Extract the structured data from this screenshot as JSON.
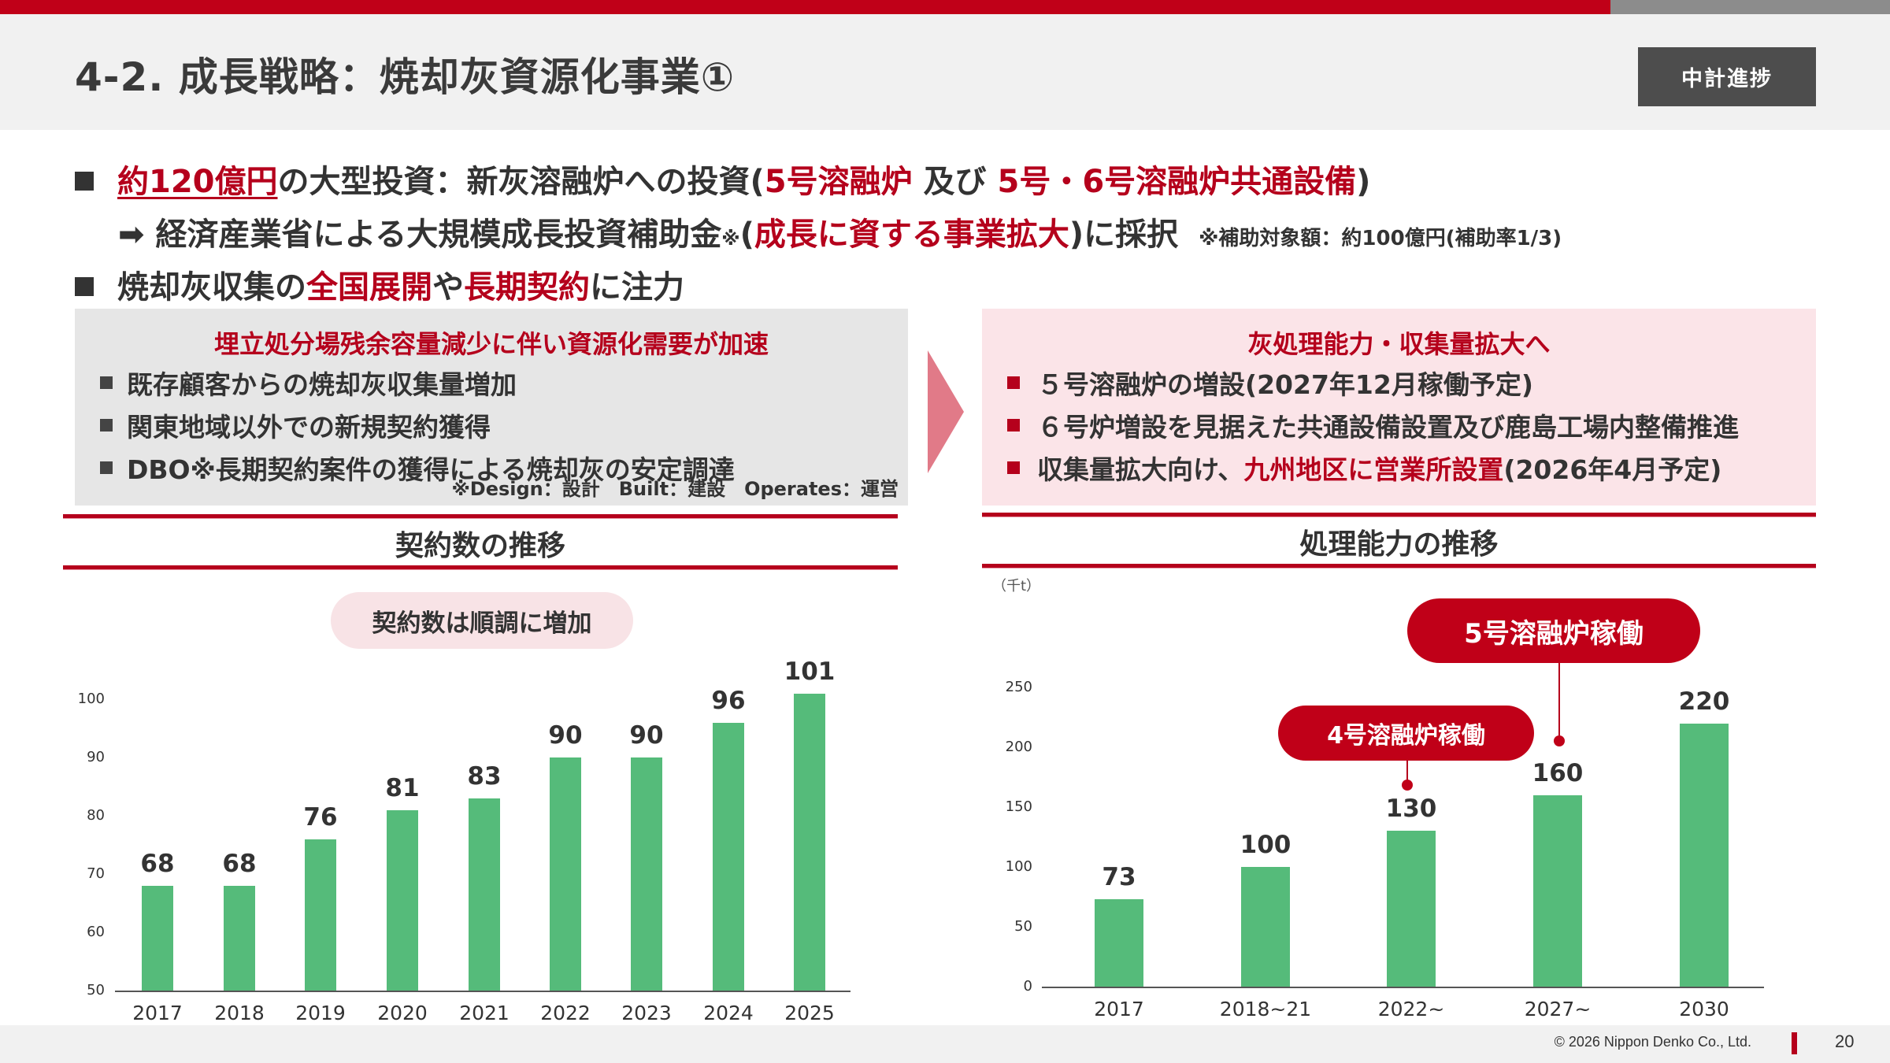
{
  "header": {
    "title": "4-2. 成長戦略：焼却灰資源化事業①",
    "badge": "中計進捗",
    "colors": {
      "accent_red": "#c00018",
      "badge_bg": "#4d4d4d",
      "bar_green": "#55bb7a"
    }
  },
  "bullets": {
    "line1": {
      "highlight": "約120億円",
      "text_a": "の大型投資：新灰溶融炉への投資(",
      "red_a": "5号溶融炉",
      "text_b": " 及び ",
      "red_b": "5号・6号溶融炉共通設備",
      "text_c": ")"
    },
    "line2": {
      "arrow": "➡",
      "text_a": " 経済産業省による大規模成長投資補助金",
      "sup": "※",
      "text_b": "(",
      "red": "成長に資する事業拡大",
      "text_c": ")に採択",
      "note": "※補助対象額：約100億円(補助率1/3)"
    },
    "line3": {
      "text_a": "焼却灰収集の",
      "red_a": "全国展開",
      "text_b": "や",
      "red_b": "長期契約",
      "text_c": "に注力"
    }
  },
  "left_box": {
    "title": "埋立処分場残余容量減少に伴い資源化需要が加速",
    "items": [
      "既存顧客からの焼却灰収集量増加",
      "関東地域以外での新規契約獲得",
      "DBO※長期契約案件の獲得による焼却灰の安定調達"
    ],
    "footnote": "※Design：設計　Built：建設　Operates：運営"
  },
  "right_box": {
    "title": "灰処理能力・収集量拡大へ",
    "items": [
      {
        "text": "５号溶融炉の増設(2027年12月稼働予定)"
      },
      {
        "text": "６号炉増設を見据えた共通設備設置及び鹿島工場内整備推進"
      },
      {
        "text_a": "収集量拡大向け、",
        "red": "九州地区に営業所設置",
        "text_b": "(2026年4月予定)"
      }
    ]
  },
  "left_chart": {
    "section_title": "契約数の推移",
    "pill": "契約数は順調に増加"
  },
  "right_chart": {
    "section_title": "処理能力の推移",
    "unit": "（千t）",
    "callouts": [
      {
        "label": "4号溶融炉稼働",
        "target": "2022~"
      },
      {
        "label": "5号溶融炉稼働",
        "target": "2027~"
      }
    ]
  },
  "chart_data": [
    {
      "type": "bar",
      "title": "契約数の推移",
      "annotation": "契約数は順調に増加",
      "categories": [
        "2017",
        "2018",
        "2019",
        "2020",
        "2021",
        "2022",
        "2023",
        "2024",
        "2025"
      ],
      "values": [
        68,
        68,
        76,
        81,
        83,
        90,
        90,
        96,
        101
      ],
      "value_labels": [
        "68",
        "68",
        "76",
        "81",
        "83",
        "90",
        "90",
        "96",
        "101"
      ],
      "yticks": [
        "50",
        "60",
        "70",
        "80",
        "90",
        "100"
      ],
      "ylim": [
        50,
        100
      ],
      "xlabel": "",
      "ylabel": "",
      "grid": false,
      "legend": "none"
    },
    {
      "type": "bar",
      "title": "処理能力の推移",
      "unit": "千t",
      "categories": [
        "2017",
        "2018~21",
        "2022~",
        "2027~",
        "2030"
      ],
      "values": [
        73,
        100,
        130,
        160,
        220
      ],
      "value_labels": [
        "73",
        "100",
        "130",
        "160",
        "220"
      ],
      "yticks": [
        "0",
        "50",
        "100",
        "150",
        "200",
        "250"
      ],
      "ylim": [
        0,
        250
      ],
      "xlabel": "",
      "ylabel": "（千t）",
      "grid": false,
      "legend": "none",
      "annotations": [
        "4号溶融炉稼働 → 2022~",
        "5号溶融炉稼働 → 2027~"
      ]
    }
  ],
  "footer": {
    "copyright": "© 2026 Nippon Denko Co., Ltd.",
    "page": "20"
  }
}
